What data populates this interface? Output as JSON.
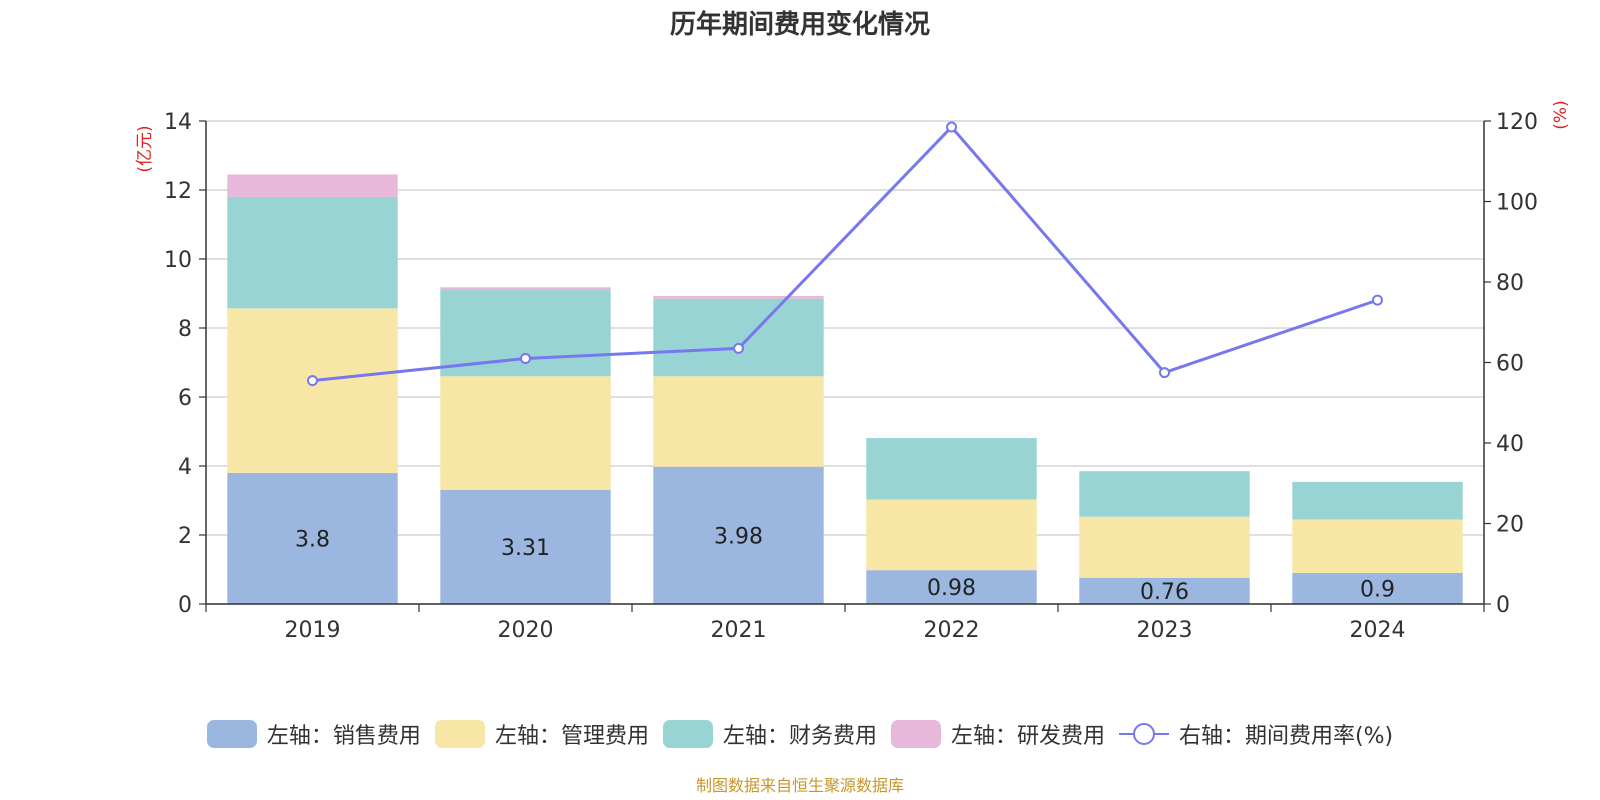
{
  "chart_data": {
    "type": "bar",
    "title": "历年期间费用变化情况",
    "source": "制图数据来自恒生聚源数据库",
    "categories": [
      "2019",
      "2020",
      "2021",
      "2022",
      "2023",
      "2024"
    ],
    "y_left": {
      "label": "(亿元)",
      "min": 0,
      "max": 14,
      "ticks": [
        0,
        2,
        4,
        6,
        8,
        10,
        12,
        14
      ]
    },
    "y_right": {
      "label": "(%)",
      "min": 0,
      "max": 120,
      "ticks": [
        0,
        20,
        40,
        60,
        80,
        100,
        120
      ]
    },
    "series": [
      {
        "name": "左轴：销售费用",
        "type": "bar",
        "stack": true,
        "color": "#9bb7e0",
        "values": [
          3.8,
          3.31,
          3.98,
          0.98,
          0.76,
          0.9
        ],
        "labels": [
          "3.8",
          "3.31",
          "3.98",
          "0.98",
          "0.76",
          "0.9"
        ]
      },
      {
        "name": "左轴：管理费用",
        "type": "bar",
        "stack": true,
        "color": "#f7e6a6",
        "values": [
          4.77,
          3.29,
          2.62,
          2.05,
          1.77,
          1.55
        ]
      },
      {
        "name": "左轴：财务费用",
        "type": "bar",
        "stack": true,
        "color": "#98d4d4",
        "values": [
          3.23,
          2.5,
          2.25,
          1.78,
          1.32,
          1.09
        ]
      },
      {
        "name": "左轴：研发费用",
        "type": "bar",
        "stack": true,
        "color": "#e8b8da",
        "values": [
          0.65,
          0.08,
          0.08,
          0,
          0,
          0
        ]
      },
      {
        "name": "右轴：期间费用率(%)",
        "type": "line",
        "axis": "right",
        "color": "#7777ee",
        "values": [
          55.5,
          61.0,
          63.5,
          118.5,
          57.5,
          75.5
        ]
      }
    ]
  }
}
